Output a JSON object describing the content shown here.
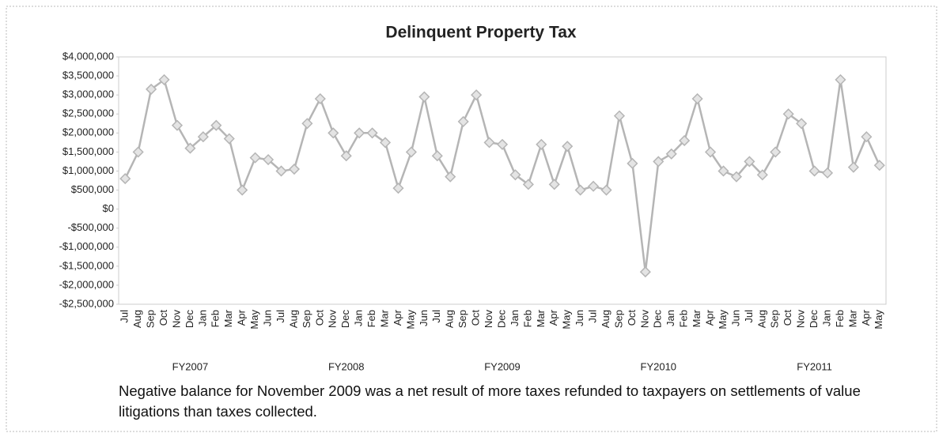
{
  "chart_data": {
    "type": "line",
    "title": "Delinquent Property Tax",
    "categories": [
      "Jul",
      "Aug",
      "Sep",
      "Oct",
      "Nov",
      "Dec",
      "Jan",
      "Feb",
      "Mar",
      "Apr",
      "May",
      "Jun",
      "Jul",
      "Aug",
      "Sep",
      "Oct",
      "Nov",
      "Dec",
      "Jan",
      "Feb",
      "Mar",
      "Apr",
      "May",
      "Jun",
      "Jul",
      "Aug",
      "Sep",
      "Oct",
      "Nov",
      "Dec",
      "Jan",
      "Feb",
      "Mar",
      "Apr",
      "May",
      "Jun",
      "Jul",
      "Aug",
      "Sep",
      "Oct",
      "Nov",
      "Dec",
      "Jan",
      "Feb",
      "Mar",
      "Apr",
      "May",
      "Jun",
      "Jul",
      "Aug",
      "Sep",
      "Oct",
      "Nov",
      "Dec",
      "Jan",
      "Feb",
      "Mar",
      "Apr",
      "May"
    ],
    "groups": [
      "FY2007",
      "FY2008",
      "FY2009",
      "FY2010",
      "FY2011"
    ],
    "values": [
      800000,
      1500000,
      3150000,
      3400000,
      2200000,
      1600000,
      1900000,
      2200000,
      1850000,
      500000,
      1350000,
      1300000,
      1000000,
      1050000,
      2250000,
      2900000,
      2000000,
      1400000,
      2000000,
      2000000,
      1750000,
      550000,
      1500000,
      2950000,
      1400000,
      850000,
      2300000,
      3000000,
      1750000,
      1700000,
      900000,
      650000,
      1700000,
      650000,
      1650000,
      500000,
      600000,
      500000,
      2450000,
      1200000,
      -1650000,
      1250000,
      1450000,
      1800000,
      2900000,
      1500000,
      1000000,
      850000,
      1250000,
      900000,
      1500000,
      2500000,
      2250000,
      1000000,
      950000,
      3400000,
      1100000,
      1900000,
      1150000
    ],
    "color": "#b5b5b5",
    "ylim": [
      -2500000,
      4000000
    ],
    "yticks": [
      {
        "value": -2500000,
        "label": "-$2,500,000"
      },
      {
        "value": -2000000,
        "label": "-$2,000,000"
      },
      {
        "value": -1500000,
        "label": "-$1,500,000"
      },
      {
        "value": -1000000,
        "label": "-$1,000,000"
      },
      {
        "value": -500000,
        "label": "-$500,000"
      },
      {
        "value": 0,
        "label": "$0"
      },
      {
        "value": 500000,
        "label": "$500,000"
      },
      {
        "value": 1000000,
        "label": "$1,000,000"
      },
      {
        "value": 1500000,
        "label": "$1,500,000"
      },
      {
        "value": 2000000,
        "label": "$2,000,000"
      },
      {
        "value": 2500000,
        "label": "$2,500,000"
      },
      {
        "value": 3000000,
        "label": "$3,000,000"
      },
      {
        "value": 3500000,
        "label": "$3,500,000"
      },
      {
        "value": 4000000,
        "label": "$4,000,000"
      }
    ],
    "grid": false,
    "annotation": "Negative balance for November 2009 was a net result of more taxes refunded to taxpayers on settlements of value litigations than taxes collected."
  }
}
